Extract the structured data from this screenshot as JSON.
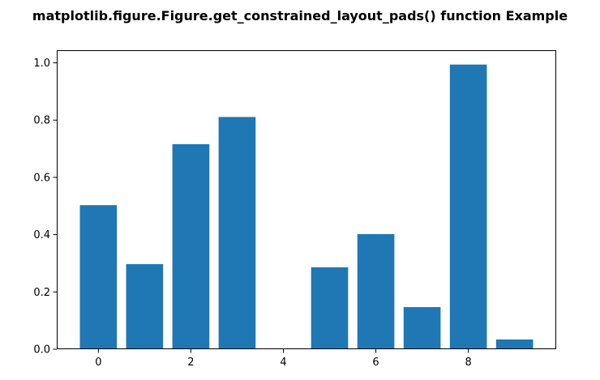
{
  "chart_data": {
    "type": "bar",
    "title": "matplotlib.figure.Figure.get_constrained_layout_pads() function Example",
    "xlabel": "",
    "ylabel": "",
    "x": [
      0,
      1,
      2,
      3,
      4,
      5,
      6,
      7,
      8,
      9
    ],
    "values": [
      0.503,
      0.297,
      0.716,
      0.811,
      0.0,
      0.286,
      0.402,
      0.147,
      0.994,
      0.034
    ],
    "xlim": [
      -0.9,
      9.9
    ],
    "ylim": [
      0,
      1.044
    ],
    "xticks": [
      0,
      2,
      4,
      6,
      8
    ],
    "xtick_labels": [
      "0",
      "2",
      "4",
      "6",
      "8"
    ],
    "yticks": [
      0.0,
      0.2,
      0.4,
      0.6,
      0.8,
      1.0
    ],
    "ytick_labels": [
      "0.0",
      "0.2",
      "0.4",
      "0.6",
      "0.8",
      "1.0"
    ],
    "bar_width": 0.8,
    "bar_color": "#1f77b4",
    "grid": false,
    "legend": "none"
  }
}
